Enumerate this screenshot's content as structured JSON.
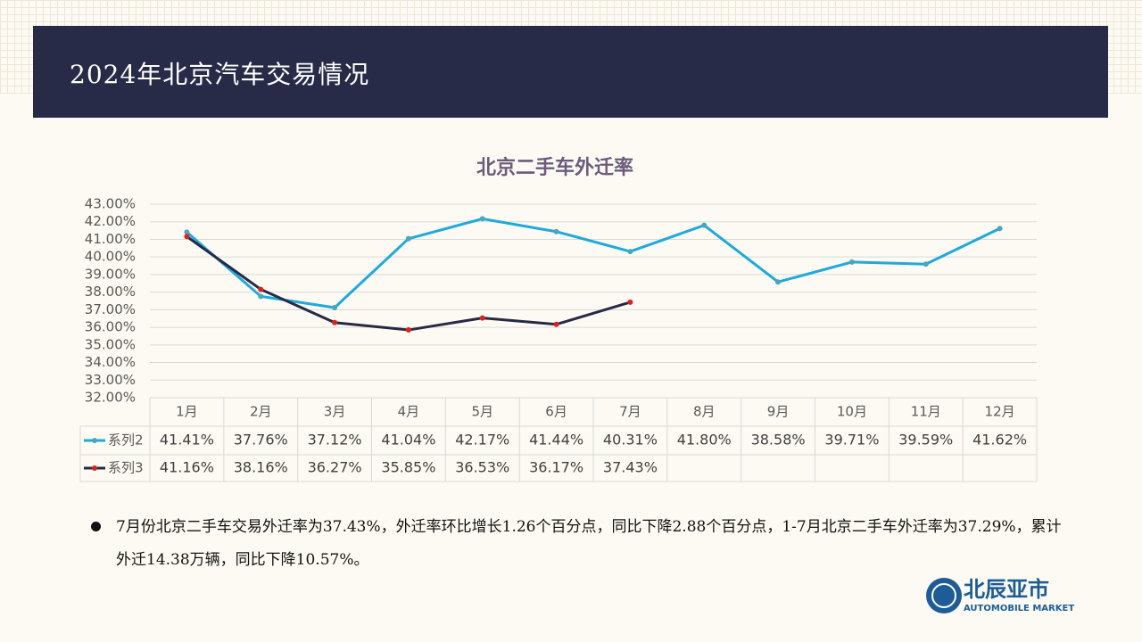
{
  "header": {
    "title": "2024年北京汽车交易情况"
  },
  "chart_data": {
    "type": "line",
    "title": "北京二手车外迁率",
    "categories": [
      "1月",
      "2月",
      "3月",
      "4月",
      "5月",
      "6月",
      "7月",
      "8月",
      "9月",
      "10月",
      "11月",
      "12月"
    ],
    "series": [
      {
        "name": "系列2",
        "color": "#1ea9df",
        "marker_color": "#4aa6b8",
        "values": [
          41.41,
          37.76,
          37.12,
          41.04,
          42.17,
          41.44,
          40.31,
          41.8,
          38.58,
          39.71,
          39.59,
          41.62
        ],
        "value_labels": [
          "41.41%",
          "37.76%",
          "37.12%",
          "41.04%",
          "42.17%",
          "41.44%",
          "40.31%",
          "41.80%",
          "38.58%",
          "39.71%",
          "39.59%",
          "41.62%"
        ]
      },
      {
        "name": "系列3",
        "color": "#262a46",
        "marker_color": "#e0201c",
        "values": [
          41.16,
          38.16,
          36.27,
          35.85,
          36.53,
          36.17,
          37.43,
          null,
          null,
          null,
          null,
          null
        ],
        "value_labels": [
          "41.16%",
          "38.16%",
          "36.27%",
          "35.85%",
          "36.53%",
          "36.17%",
          "37.43%",
          null,
          null,
          null,
          null,
          null
        ]
      }
    ],
    "ylim": [
      32,
      43
    ],
    "yticks": [
      {
        "value": 32,
        "label": "32.00%"
      },
      {
        "value": 33,
        "label": "33.00%"
      },
      {
        "value": 34,
        "label": "34.00%"
      },
      {
        "value": 35,
        "label": "35.00%"
      },
      {
        "value": 36,
        "label": "36.00%"
      },
      {
        "value": 37,
        "label": "37.00%"
      },
      {
        "value": 38,
        "label": "38.00%"
      },
      {
        "value": 39,
        "label": "39.00%"
      },
      {
        "value": 40,
        "label": "40.00%"
      },
      {
        "value": 41,
        "label": "41.00%"
      },
      {
        "value": 42,
        "label": "42.00%"
      },
      {
        "value": 43,
        "label": "43.00%"
      }
    ],
    "grid": true
  },
  "bullet": "7月份北京二手车交易外迁率为37.43%，外迁率环比增长1.26个百分点，同比下降2.88个百分点，1-7月北京二手车外迁率为37.29%，累计外迁14.38万辆，同比下降10.57%。",
  "logo": {
    "name": "北辰亚市",
    "subtitle": "AUTOMOBILE MARKET"
  }
}
